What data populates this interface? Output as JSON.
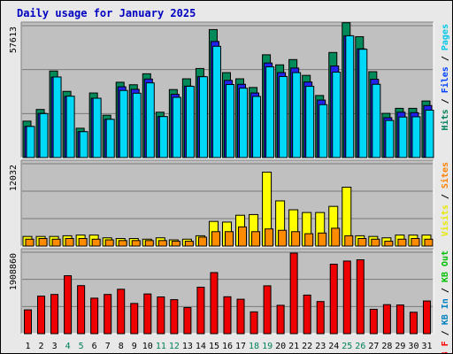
{
  "title": "Daily usage for January 2025",
  "colors": {
    "hits": "#008040",
    "files": "#0040ff",
    "pages": "#00e0ff",
    "visits": "#ffff00",
    "sites": "#ff8000",
    "kbin": "#0080c0",
    "kbout": "#00c000",
    "kbf": "#ff0000",
    "weekend": "#00805c",
    "weekday": "#000000",
    "panel": "#c0c0c0"
  },
  "legend": {
    "top": [
      {
        "text": "Hits",
        "color": "#00805c"
      },
      {
        "text": " / ",
        "color": "#000000"
      },
      {
        "text": "Files",
        "color": "#0040ff"
      },
      {
        "text": " / ",
        "color": "#000000"
      },
      {
        "text": "Pages",
        "color": "#00c8e8"
      }
    ],
    "middle": [
      {
        "text": "Visits",
        "color": "#e8e800"
      },
      {
        "text": " / ",
        "color": "#000000"
      },
      {
        "text": "Sites",
        "color": "#ff8000"
      }
    ],
    "bottom": [
      {
        "text": "KB F",
        "color": "#ff0000"
      },
      {
        "text": " / ",
        "color": "#000000"
      },
      {
        "text": "KB In",
        "color": "#0080c0"
      },
      {
        "text": " / ",
        "color": "#000000"
      },
      {
        "text": "KB Out",
        "color": "#00c000"
      }
    ]
  },
  "chart_data": {
    "type": "bar",
    "title": "Daily usage for January 2025",
    "categories": [
      "1",
      "2",
      "3",
      "4",
      "5",
      "6",
      "7",
      "8",
      "9",
      "10",
      "11",
      "12",
      "13",
      "14",
      "15",
      "16",
      "17",
      "18",
      "19",
      "20",
      "21",
      "22",
      "23",
      "24",
      "25",
      "26",
      "27",
      "28",
      "29",
      "30",
      "31"
    ],
    "weekend_days": [
      4,
      5,
      11,
      12,
      18,
      19,
      25,
      26
    ],
    "panels": [
      {
        "name": "hits-files-pages",
        "ymax": 57613,
        "ymax_label": "57613",
        "series": [
          {
            "name": "Hits",
            "values": [
              15900,
              21000,
              37800,
              28900,
              12800,
              28200,
              18500,
              32900,
              31800,
              36600,
              19800,
              29700,
              34400,
              38900,
              55900,
              37100,
              34400,
              30600,
              44900,
              40500,
              42800,
              35900,
              27100,
              45900,
              58900,
              52800,
              37500,
              19300,
              21500,
              21500,
              24700
            ]
          },
          {
            "name": "Files",
            "values": [
              13600,
              19300,
              35100,
              26700,
              11300,
              25900,
              16700,
              30900,
              29800,
              34300,
              17900,
              27600,
              31200,
              35400,
              50700,
              33700,
              32000,
              28200,
              41300,
              37100,
              39100,
              33000,
              25100,
              40000,
              53200,
              47500,
              34200,
              17400,
              19800,
              19600,
              22700
            ]
          },
          {
            "name": "Pages",
            "values": [
              13600,
              19200,
              35200,
              26800,
              11300,
              25900,
              16700,
              29300,
              28100,
              32600,
              17900,
              26300,
              31100,
              35300,
              48600,
              31900,
              30300,
              26700,
              39600,
              35400,
              37100,
              31100,
              23100,
              37300,
              53200,
              47300,
              32000,
              16200,
              17700,
              17800,
              20700
            ]
          }
        ]
      },
      {
        "name": "visits-sites",
        "ymax": 12032,
        "ymax_label": "12032",
        "series": [
          {
            "name": "Visits",
            "values": [
              1400,
              1400,
              1400,
              1500,
              1600,
              1600,
              1200,
              1100,
              1100,
              1000,
              1200,
              900,
              1000,
              1500,
              3600,
              3500,
              4500,
              4600,
              10800,
              6600,
              5300,
              4900,
              4900,
              5800,
              8600,
              1500,
              1400,
              1200,
              1600,
              1600,
              1600
            ]
          },
          {
            "name": "Sites",
            "values": [
              1000,
              1100,
              1000,
              1100,
              1100,
              1000,
              900,
              800,
              800,
              800,
              800,
              700,
              700,
              1300,
              2100,
              2100,
              2800,
              2100,
              2500,
              2300,
              2100,
              1800,
              1900,
              2600,
              1500,
              1100,
              1000,
              700,
              1000,
              1100,
              1000
            ]
          }
        ]
      },
      {
        "name": "kb-f-in-out",
        "ymax": 1908860,
        "ymax_label": "1908860",
        "series": [
          {
            "name": "KB F",
            "values": [
              558000,
              880000,
              919000,
              1358000,
              1126000,
              832000,
              919000,
              1041000,
              708000,
              931000,
              861000,
              797000,
              611000,
              1089000,
              1432000,
              865000,
              807000,
              511000,
              1122000,
              665000,
              1888000,
              904000,
              753000,
              1628000,
              1702000,
              1731000,
              571000,
              680000,
              672000,
              502000,
              766000
            ]
          }
        ]
      }
    ]
  }
}
